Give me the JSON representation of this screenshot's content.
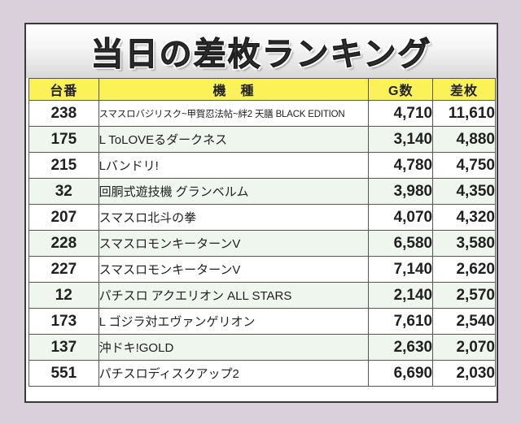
{
  "title": "当日の差枚ランキング",
  "colors": {
    "header_bg": "#fbf25a",
    "alt_row": "#eef6ee",
    "page_bg": "#d9d0db"
  },
  "headers": {
    "machine_no": "台番",
    "model": "機　種",
    "games": "G数",
    "diff": "差枚"
  },
  "rows": [
    {
      "no": "238",
      "model": "スマスロバジリスク~甲賀忍法帖~絆2 天膳 BLACK EDITION",
      "games": "4,710",
      "diff": "11,610"
    },
    {
      "no": "175",
      "model": "L ToLOVEるダークネス",
      "games": "3,140",
      "diff": "4,880"
    },
    {
      "no": "215",
      "model": "Lバンドリ!",
      "games": "4,780",
      "diff": "4,750"
    },
    {
      "no": "32",
      "model": "回胴式遊技機 グランベルム",
      "games": "3,980",
      "diff": "4,350"
    },
    {
      "no": "207",
      "model": "スマスロ北斗の拳",
      "games": "4,070",
      "diff": "4,320"
    },
    {
      "no": "228",
      "model": "スマスロモンキーターンV",
      "games": "6,580",
      "diff": "3,580"
    },
    {
      "no": "227",
      "model": "スマスロモンキーターンV",
      "games": "7,140",
      "diff": "2,620"
    },
    {
      "no": "12",
      "model": "パチスロ アクエリオン ALL STARS",
      "games": "2,140",
      "diff": "2,570"
    },
    {
      "no": "173",
      "model": "L ゴジラ対エヴァンゲリオン",
      "games": "7,610",
      "diff": "2,540"
    },
    {
      "no": "137",
      "model": "沖ドキ!GOLD",
      "games": "2,630",
      "diff": "2,070"
    },
    {
      "no": "551",
      "model": "パチスロディスクアップ2",
      "games": "6,690",
      "diff": "2,030"
    }
  ]
}
